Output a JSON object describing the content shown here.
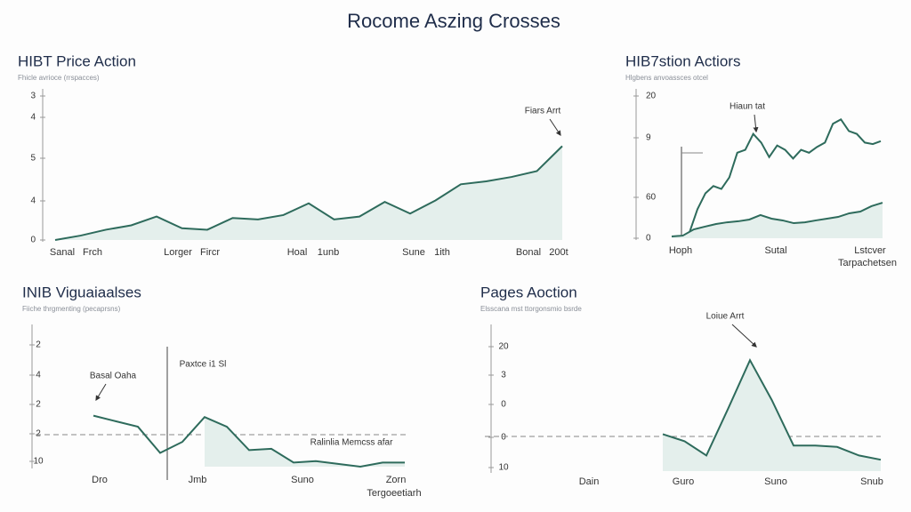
{
  "chart_data": [
    {
      "type": "line",
      "title": "HIBT Price Action",
      "subtitle": "Fhicle avrioce (rrspacces)",
      "y_labels": [
        "3",
        "4",
        "5",
        "4",
        "0"
      ],
      "x_labels": [
        "Sanal",
        "Frch",
        "Lorger",
        "Fircr",
        "Hoal",
        "1unb",
        "Sune",
        "1ith",
        "Bonal",
        "200t"
      ],
      "annotations": [
        "Fiars Arrt"
      ],
      "ylim": [
        0,
        100
      ],
      "series": [
        {
          "color": "#2e6b5c",
          "values": [
            0,
            3,
            7,
            10,
            16,
            8,
            7,
            15,
            14,
            17,
            25,
            14,
            16,
            26,
            18,
            27,
            38,
            40,
            43,
            47,
            64
          ]
        }
      ]
    },
    {
      "type": "line",
      "title": "HIB7stion Actiors",
      "subtitle": "Hlgbens anvoassces otcel",
      "y_labels": [
        "20",
        "9",
        "60",
        "0"
      ],
      "x_labels": [
        "Hoph",
        "Sutal",
        "Lstcver",
        "Tarpachetsen"
      ],
      "annotations": [
        "Hiaun tat"
      ],
      "ylim": [
        0,
        100
      ],
      "series": [
        {
          "color": "#2e6b5c",
          "values": [
            4,
            20,
            31,
            36,
            34,
            42,
            59,
            61,
            72,
            66,
            56,
            64,
            61,
            55,
            61,
            59,
            63,
            66,
            79,
            82,
            74,
            72,
            66,
            65,
            67
          ]
        },
        {
          "color": "#2e6b5c",
          "values": [
            1.2,
            1.8,
            6.1,
            8,
            9.8,
            11,
            11.7,
            12.9,
            16,
            13.5,
            12.3,
            10.4,
            11,
            12.3,
            13.5,
            14.7,
            17.2,
            18.4,
            22.1,
            24.5
          ]
        }
      ]
    },
    {
      "type": "line",
      "title": "INIB Viguaiaalses",
      "subtitle": "Fiiche thrgmenting (pecaprsns)",
      "y_labels": [
        "2",
        "4",
        "2",
        "2",
        "10"
      ],
      "x_labels": [
        "Dro",
        "Jmb",
        "Suno",
        "Zorn",
        "Tergoeetiarh"
      ],
      "annotations": [
        "Basal Oaha",
        "Paxtce i1 Sl",
        "Ralinlia Memcss afar"
      ],
      "ylim": [
        0,
        100
      ],
      "series": [
        {
          "color": "#2e6b5c",
          "values": [
            37,
            33,
            29,
            10,
            18,
            36,
            29,
            12,
            13,
            3,
            4,
            2,
            0,
            3,
            3
          ]
        }
      ]
    },
    {
      "type": "line",
      "title": "Pages Aoction",
      "subtitle": "Elsscana mst ttorgonsmio bsrde",
      "y_labels": [
        "20",
        "3",
        "0",
        "0",
        "10"
      ],
      "x_labels": [
        "Dain",
        "Guro",
        "Suno",
        "Snub"
      ],
      "annotations": [
        "Loiue Arrt"
      ],
      "ylim": [
        0,
        100
      ],
      "series": [
        {
          "color": "#2e6b5c",
          "values": [
            26,
            21,
            11,
            44,
            78,
            50,
            18,
            18,
            17,
            11,
            8
          ]
        }
      ]
    }
  ],
  "title": "Rocome Aszing Crosses"
}
